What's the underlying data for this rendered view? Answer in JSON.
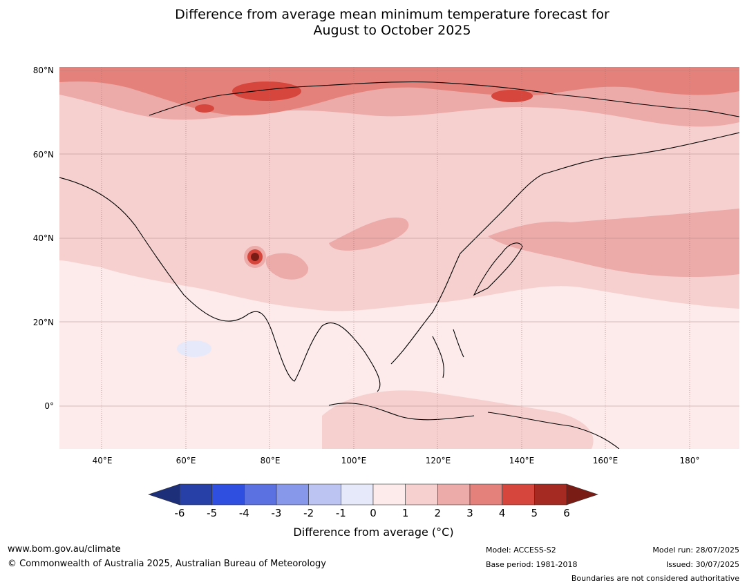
{
  "title_line1": "Difference from average mean minimum temperature forecast for",
  "title_line2": "August to October 2025",
  "map": {
    "lat_labels": [
      "80°N",
      "60°N",
      "40°N",
      "20°N",
      "0°"
    ],
    "lon_labels": [
      "40°E",
      "60°E",
      "80°E",
      "100°E",
      "120°E",
      "140°E",
      "160°E",
      "180°"
    ]
  },
  "colorbar": {
    "ticks": [
      "-6",
      "-5",
      "-4",
      "-3",
      "-2",
      "-1",
      "0",
      "1",
      "2",
      "3",
      "4",
      "5",
      "6"
    ],
    "colors": [
      "#2740a8",
      "#2f4fe0",
      "#5b71e2",
      "#8797ea",
      "#bcc5f2",
      "#e6e9fa",
      "#fdeaea",
      "#f5d0cf",
      "#ecaaa8",
      "#e5817b",
      "#d6463c",
      "#a52a21"
    ],
    "under_color": "#1d2f78",
    "over_color": "#7a1c16",
    "label": "Difference from average (°C)"
  },
  "footer": {
    "website": "www.bom.gov.au/climate",
    "copyright": "© Commonwealth of Australia 2025, Australian Bureau of Meteorology",
    "model": "Model: ACCESS-S2",
    "base_period": "Base period: 1981-2018",
    "model_run": "Model run: 28/07/2025",
    "issued": "Issued: 30/07/2025",
    "boundaries_note": "Boundaries are not considered authoritative"
  }
}
